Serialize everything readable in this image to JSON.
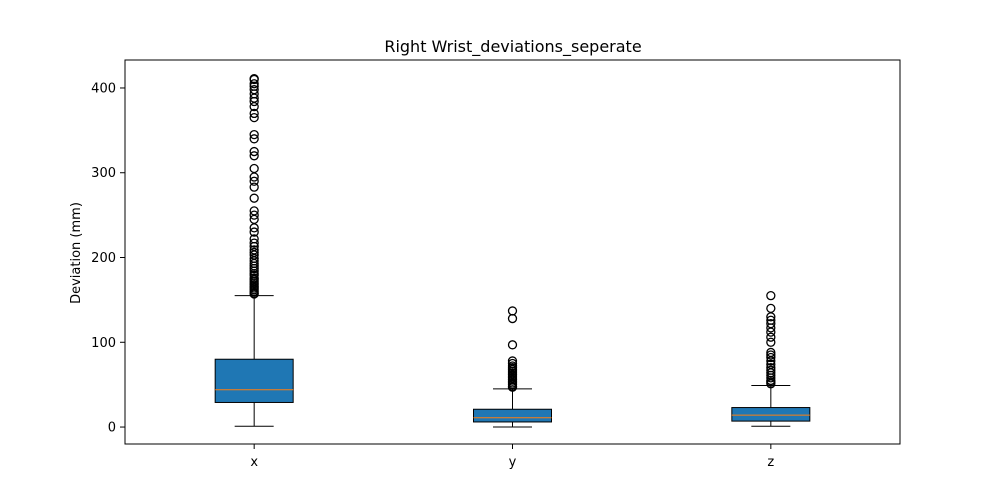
{
  "chart_data": {
    "type": "boxplot",
    "title": "Right Wrist_deviations_seperate",
    "xlabel": "",
    "ylabel": "Deviation (mm)",
    "ylim": [
      -20,
      433
    ],
    "yticks": [
      0,
      100,
      200,
      300,
      400
    ],
    "categories": [
      "x",
      "y",
      "z"
    ],
    "box_color": "#1f77b4",
    "median_color": "#ff7f0e",
    "boxes": [
      {
        "category": "x",
        "whislo": 1,
        "q1": 29,
        "med": 44,
        "q3": 80,
        "whishi": 155,
        "fliers": [
          411,
          410,
          405,
          402,
          398,
          393,
          388,
          384,
          378,
          370,
          365,
          345,
          340,
          325,
          320,
          305,
          295,
          290,
          283,
          270,
          255,
          250,
          245,
          235,
          230,
          222,
          217,
          213,
          209,
          206,
          203,
          199,
          196,
          193,
          190,
          187,
          184,
          181,
          179,
          176,
          174,
          172,
          170,
          168,
          166,
          164,
          162,
          160,
          158,
          157
        ]
      },
      {
        "category": "y",
        "whislo": 0,
        "q1": 6,
        "med": 11,
        "q3": 21,
        "whishi": 45,
        "fliers": [
          137,
          128,
          97,
          78,
          75,
          72,
          70,
          68,
          66,
          64,
          62,
          60,
          58,
          56,
          54,
          52,
          50,
          48,
          47
        ]
      },
      {
        "category": "z",
        "whislo": 1,
        "q1": 7,
        "med": 14,
        "q3": 23,
        "whishi": 49,
        "fliers": [
          155,
          140,
          130,
          126,
          122,
          117,
          112,
          106,
          100,
          88,
          85,
          82,
          78,
          74,
          70,
          67,
          64,
          61,
          58,
          55,
          53,
          51
        ]
      }
    ]
  }
}
